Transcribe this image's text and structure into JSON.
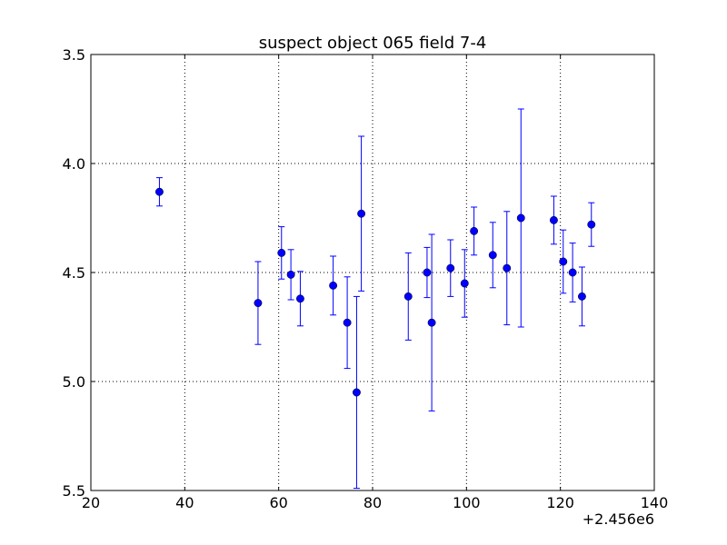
{
  "chart_data": {
    "type": "scatter",
    "title": "suspect object 065 field 7-4",
    "xlabel": "",
    "ylabel": "",
    "x_offset_label": "+2.456e6",
    "xlim": [
      20,
      140
    ],
    "ylim": [
      5.5,
      3.5
    ],
    "y_inverted": true,
    "grid": true,
    "x_ticks": [
      20,
      40,
      60,
      80,
      100,
      120,
      140
    ],
    "y_ticks": [
      3.5,
      4.0,
      4.5,
      5.0,
      5.5
    ],
    "x_tick_labels": [
      "20",
      "40",
      "60",
      "80",
      "100",
      "120",
      "140"
    ],
    "y_tick_labels": [
      "3.5",
      "4.0",
      "4.5",
      "5.0",
      "5.5"
    ],
    "marker_color": "#0000ff",
    "series": [
      {
        "points": [
          {
            "x": 34.6,
            "y": 4.13,
            "err": 0.065
          },
          {
            "x": 55.6,
            "y": 4.64,
            "err": 0.19
          },
          {
            "x": 60.6,
            "y": 4.41,
            "err": 0.12
          },
          {
            "x": 62.6,
            "y": 4.51,
            "err": 0.115
          },
          {
            "x": 64.6,
            "y": 4.62,
            "err": 0.125
          },
          {
            "x": 71.6,
            "y": 4.56,
            "err": 0.135
          },
          {
            "x": 74.6,
            "y": 4.73,
            "err": 0.21
          },
          {
            "x": 76.6,
            "y": 5.05,
            "err": 0.44
          },
          {
            "x": 77.6,
            "y": 4.23,
            "err": 0.355
          },
          {
            "x": 87.6,
            "y": 4.61,
            "err": 0.2
          },
          {
            "x": 91.6,
            "y": 4.5,
            "err": 0.115
          },
          {
            "x": 92.6,
            "y": 4.73,
            "err": 0.405
          },
          {
            "x": 96.6,
            "y": 4.48,
            "err": 0.13
          },
          {
            "x": 99.6,
            "y": 4.55,
            "err": 0.155
          },
          {
            "x": 101.6,
            "y": 4.31,
            "err": 0.11
          },
          {
            "x": 105.6,
            "y": 4.42,
            "err": 0.15
          },
          {
            "x": 108.6,
            "y": 4.48,
            "err": 0.26
          },
          {
            "x": 111.6,
            "y": 4.25,
            "err": 0.5
          },
          {
            "x": 118.6,
            "y": 4.26,
            "err": 0.11
          },
          {
            "x": 120.6,
            "y": 4.45,
            "err": 0.145
          },
          {
            "x": 122.6,
            "y": 4.5,
            "err": 0.135
          },
          {
            "x": 124.6,
            "y": 4.61,
            "err": 0.135
          },
          {
            "x": 126.6,
            "y": 4.28,
            "err": 0.1
          }
        ]
      }
    ]
  }
}
